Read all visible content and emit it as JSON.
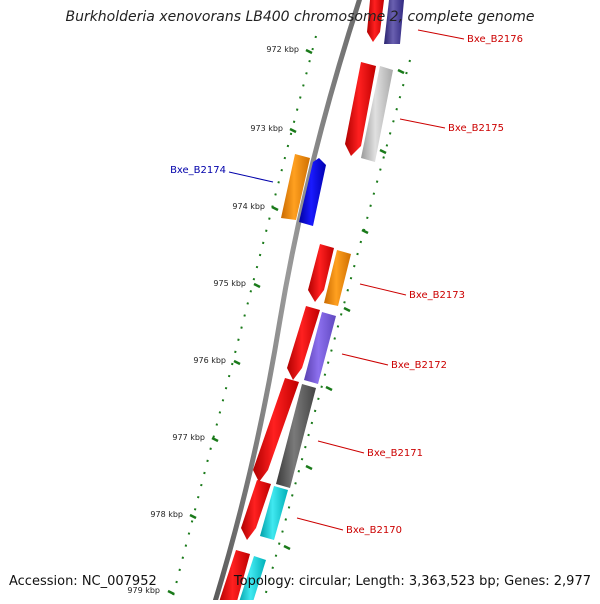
{
  "title": "Burkholderia xenovorans LB400 chromosome 2, complete genome",
  "footer": {
    "accession": "Accession: NC_007952",
    "summary": "Topology: circular; Length: 3,363,523 bp; Genes: 2,977"
  },
  "colors": {
    "backbone": "#7f7f7f",
    "tick": "#1a7a1a",
    "label_red": "#cc0000",
    "label_blue": "#0000aa"
  },
  "ticks": [
    "972 kbp",
    "973 kbp",
    "974 kbp",
    "975 kbp",
    "976 kbp",
    "977 kbp",
    "978 kbp",
    "979 kbp"
  ],
  "genes": [
    {
      "label": "Bxe_B2176",
      "side": "right"
    },
    {
      "label": "Bxe_B2175",
      "side": "right"
    },
    {
      "label": "Bxe_B2174",
      "side": "left"
    },
    {
      "label": "Bxe_B2173",
      "side": "right"
    },
    {
      "label": "Bxe_B2172",
      "side": "right"
    },
    {
      "label": "Bxe_B2171",
      "side": "right"
    },
    {
      "label": "Bxe_B2170",
      "side": "right"
    }
  ]
}
